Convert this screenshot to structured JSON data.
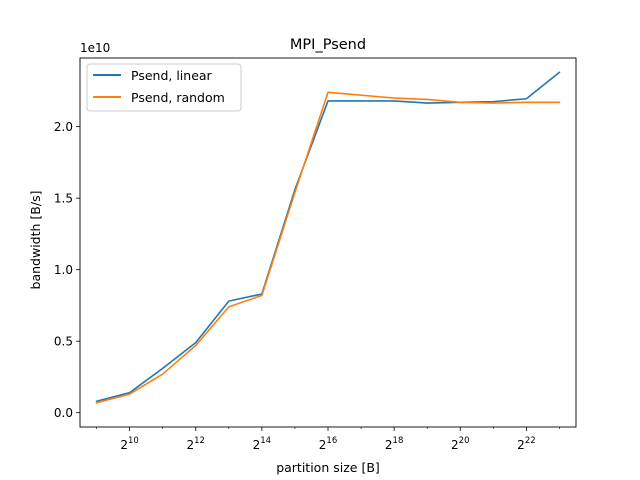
{
  "chart_data": {
    "type": "line",
    "title": "MPI_Psend",
    "xlabel": "partition size [B]",
    "ylabel": "bandwidth [B/s]",
    "y_scale_label": "1e10",
    "x_scale": "log2",
    "xlim": [
      362,
      11860000
    ],
    "ylim": [
      -0.1,
      2.48
    ],
    "x_ticks": [
      {
        "exp": 10,
        "base": "2",
        "sup": "10"
      },
      {
        "exp": 12,
        "base": "2",
        "sup": "12"
      },
      {
        "exp": 14,
        "base": "2",
        "sup": "14"
      },
      {
        "exp": 16,
        "base": "2",
        "sup": "16"
      },
      {
        "exp": 18,
        "base": "2",
        "sup": "18"
      },
      {
        "exp": 20,
        "base": "2",
        "sup": "20"
      },
      {
        "exp": 22,
        "base": "2",
        "sup": "22"
      }
    ],
    "y_ticks": [
      {
        "value": 0.0,
        "label": "0.0"
      },
      {
        "value": 0.5,
        "label": "0.5"
      },
      {
        "value": 1.0,
        "label": "1.0"
      },
      {
        "value": 1.5,
        "label": "1.5"
      },
      {
        "value": 2.0,
        "label": "2.0"
      }
    ],
    "x": [
      512,
      1024,
      2048,
      4096,
      8192,
      16384,
      32768,
      65536,
      131072,
      262144,
      524288,
      1048576,
      2097152,
      4194304,
      8388608
    ],
    "series": [
      {
        "name": "Psend, linear",
        "color": "#1f77b4",
        "values": [
          0.08,
          0.14,
          0.31,
          0.49,
          0.78,
          0.83,
          1.56,
          2.18,
          2.18,
          2.18,
          2.165,
          2.17,
          2.175,
          2.195,
          2.38
        ]
      },
      {
        "name": "Psend, random",
        "color": "#ff7f0e",
        "values": [
          0.07,
          0.13,
          0.27,
          0.47,
          0.74,
          0.82,
          1.54,
          2.24,
          2.22,
          2.2,
          2.19,
          2.17,
          2.165,
          2.17,
          2.17
        ]
      }
    ],
    "legend": "top-left",
    "grid": false
  }
}
